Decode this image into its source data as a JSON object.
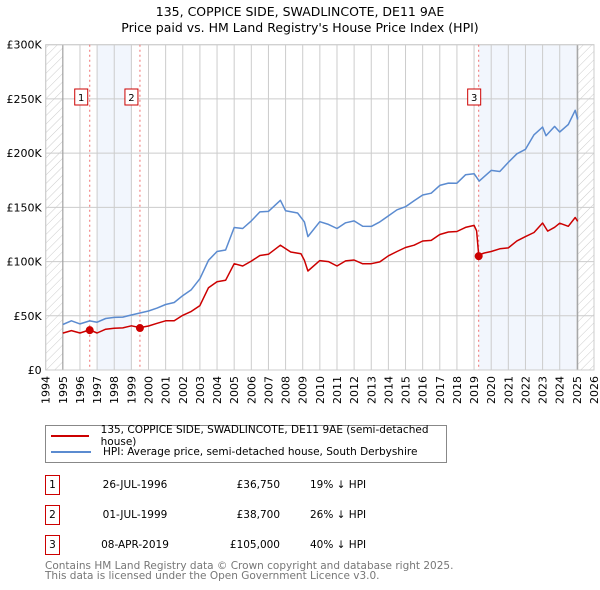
{
  "title_line1": "135, COPPICE SIDE, SWADLINCOTE, DE11 9AE",
  "title_line2": "Price paid vs. HM Land Registry's House Price Index (HPI)",
  "chart_data": {
    "type": "line",
    "title": "135, COPPICE SIDE, SWADLINCOTE, DE11 9AE — Price paid vs. HM Land Registry's House Price Index (HPI)",
    "xlim": [
      1994,
      2026
    ],
    "ylim": [
      0,
      300000
    ],
    "x_ticks": [
      "1994",
      "1995",
      "1996",
      "1997",
      "1998",
      "1999",
      "2000",
      "2001",
      "2002",
      "2003",
      "2004",
      "2005",
      "2006",
      "2007",
      "2008",
      "2009",
      "2010",
      "2011",
      "2012",
      "2013",
      "2014",
      "2015",
      "2016",
      "2017",
      "2018",
      "2019",
      "2020",
      "2021",
      "2022",
      "2023",
      "2024",
      "2025",
      "2026"
    ],
    "y_ticks": [
      {
        "v": 0,
        "label": "£0"
      },
      {
        "v": 50000,
        "label": "£50K"
      },
      {
        "v": 100000,
        "label": "£100K"
      },
      {
        "v": 150000,
        "label": "£150K"
      },
      {
        "v": 200000,
        "label": "£200K"
      },
      {
        "v": 250000,
        "label": "£250K"
      },
      {
        "v": 300000,
        "label": "£300K"
      }
    ],
    "grid": true,
    "series": [
      {
        "name": "135, COPPICE SIDE, SWADLINCOTE, DE11 9AE (semi-detached house)",
        "color": "#cc0000",
        "points": [
          [
            1995,
            34000
          ],
          [
            1995.5,
            36000
          ],
          [
            1996,
            34500
          ],
          [
            1996.57,
            36750
          ],
          [
            1997,
            34000
          ],
          [
            1997.5,
            38000
          ],
          [
            1998,
            38000
          ],
          [
            1998.5,
            39000
          ],
          [
            1999,
            41000
          ],
          [
            1999.5,
            38700
          ],
          [
            2000,
            41000
          ],
          [
            2000.5,
            43000
          ],
          [
            2001,
            45000
          ],
          [
            2001.5,
            46000
          ],
          [
            2002,
            50000
          ],
          [
            2002.5,
            54000
          ],
          [
            2003,
            60000
          ],
          [
            2003.5,
            75000
          ],
          [
            2004,
            82000
          ],
          [
            2004.5,
            83000
          ],
          [
            2005,
            97000
          ],
          [
            2005.5,
            97000
          ],
          [
            2006,
            100000
          ],
          [
            2006.5,
            105000
          ],
          [
            2007,
            108000
          ],
          [
            2007.7,
            114000
          ],
          [
            2008.3,
            109000
          ],
          [
            2008.9,
            108000
          ],
          [
            2009.1,
            100000
          ],
          [
            2009.3,
            92000
          ],
          [
            2010,
            101000
          ],
          [
            2010.5,
            99000
          ],
          [
            2011,
            97000
          ],
          [
            2011.5,
            100000
          ],
          [
            2012,
            101000
          ],
          [
            2012.5,
            99000
          ],
          [
            2013,
            97000
          ],
          [
            2013.5,
            100000
          ],
          [
            2014,
            106000
          ],
          [
            2014.5,
            108000
          ],
          [
            2015,
            114000
          ],
          [
            2015.5,
            115000
          ],
          [
            2016,
            118000
          ],
          [
            2016.5,
            121000
          ],
          [
            2017,
            124000
          ],
          [
            2017.5,
            127000
          ],
          [
            2018,
            129000
          ],
          [
            2018.5,
            130000
          ],
          [
            2019.0,
            134000
          ],
          [
            2019.15,
            129000
          ],
          [
            2019.27,
            105000
          ],
          [
            2019.6,
            109000
          ],
          [
            2020,
            109000
          ],
          [
            2020.5,
            111000
          ],
          [
            2021,
            114000
          ],
          [
            2021.5,
            118000
          ],
          [
            2022,
            123000
          ],
          [
            2022.5,
            128000
          ],
          [
            2023,
            134000
          ],
          [
            2023.3,
            129000
          ],
          [
            2023.7,
            132000
          ],
          [
            2024,
            134000
          ],
          [
            2024.5,
            134000
          ],
          [
            2024.9,
            140000
          ],
          [
            2025.05,
            137000
          ]
        ]
      },
      {
        "name": "HPI: Average price, semi-detached house, South Derbyshire",
        "color": "#5b8bd0",
        "points": [
          [
            1995,
            42000
          ],
          [
            1995.5,
            45000
          ],
          [
            1996,
            43000
          ],
          [
            1996.57,
            45000
          ],
          [
            1997,
            44000
          ],
          [
            1997.5,
            48000
          ],
          [
            1998,
            48000
          ],
          [
            1998.5,
            49000
          ],
          [
            1999,
            51000
          ],
          [
            1999.5,
            52000
          ],
          [
            2000,
            55000
          ],
          [
            2000.5,
            57000
          ],
          [
            2001,
            60000
          ],
          [
            2001.5,
            63000
          ],
          [
            2002,
            68000
          ],
          [
            2002.5,
            74000
          ],
          [
            2003,
            85000
          ],
          [
            2003.5,
            100000
          ],
          [
            2004,
            110000
          ],
          [
            2004.5,
            111000
          ],
          [
            2005,
            130000
          ],
          [
            2005.5,
            132000
          ],
          [
            2006,
            137000
          ],
          [
            2006.5,
            145000
          ],
          [
            2007,
            148000
          ],
          [
            2007.7,
            155000
          ],
          [
            2008,
            147000
          ],
          [
            2008.7,
            146000
          ],
          [
            2009.1,
            135000
          ],
          [
            2009.3,
            124000
          ],
          [
            2010,
            137000
          ],
          [
            2010.5,
            133000
          ],
          [
            2011,
            132000
          ],
          [
            2011.5,
            135000
          ],
          [
            2012,
            137000
          ],
          [
            2012.5,
            134000
          ],
          [
            2013,
            131000
          ],
          [
            2013.5,
            137000
          ],
          [
            2014,
            143000
          ],
          [
            2014.5,
            146000
          ],
          [
            2015,
            152000
          ],
          [
            2015.5,
            156000
          ],
          [
            2016,
            160000
          ],
          [
            2016.5,
            165000
          ],
          [
            2017,
            169000
          ],
          [
            2017.5,
            172000
          ],
          [
            2018,
            174000
          ],
          [
            2018.5,
            178000
          ],
          [
            2019,
            182000
          ],
          [
            2019.3,
            175000
          ],
          [
            2020,
            182000
          ],
          [
            2020.5,
            185000
          ],
          [
            2021,
            191000
          ],
          [
            2021.5,
            198000
          ],
          [
            2022,
            206000
          ],
          [
            2022.5,
            215000
          ],
          [
            2023,
            224000
          ],
          [
            2023.2,
            218000
          ],
          [
            2023.7,
            222000
          ],
          [
            2024,
            221000
          ],
          [
            2024.5,
            227000
          ],
          [
            2024.9,
            237000
          ],
          [
            2025.05,
            231000
          ]
        ]
      }
    ],
    "sales": [
      {
        "label": "1",
        "x": 1996.57,
        "y": 36750
      },
      {
        "label": "2",
        "x": 1999.5,
        "y": 38700
      },
      {
        "label": "3",
        "x": 2019.27,
        "y": 105000
      }
    ],
    "legend_placement": "below"
  },
  "legend": {
    "property": "135, COPPICE SIDE, SWADLINCOTE, DE11 9AE (semi-detached house)",
    "hpi": "HPI: Average price, semi-detached house, South Derbyshire"
  },
  "transactions": [
    {
      "num": "1",
      "date": "26-JUL-1996",
      "price": "£36,750",
      "hpi": "19% ↓ HPI"
    },
    {
      "num": "2",
      "date": "01-JUL-1999",
      "price": "£38,700",
      "hpi": "26% ↓ HPI"
    },
    {
      "num": "3",
      "date": "08-APR-2019",
      "price": "£105,000",
      "hpi": "40% ↓ HPI"
    }
  ],
  "footer_line1": "Contains HM Land Registry data © Crown copyright and database right 2025.",
  "footer_line2": "This data is licensed under the Open Government Licence v3.0."
}
